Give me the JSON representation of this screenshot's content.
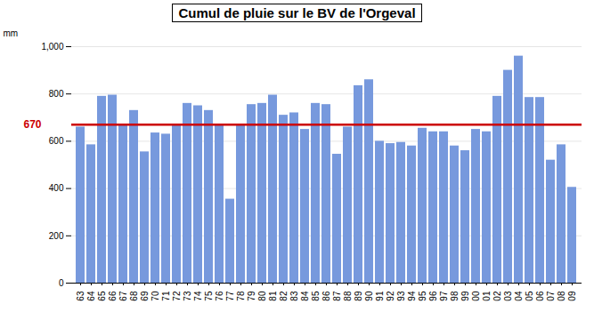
{
  "chart_data": {
    "type": "bar",
    "title": "Cumul de pluie sur le BV de l'Orgeval",
    "ylabel": "mm",
    "categories": [
      "63",
      "64",
      "65",
      "66",
      "67",
      "68",
      "69",
      "70",
      "71",
      "72",
      "73",
      "74",
      "75",
      "76",
      "77",
      "78",
      "79",
      "80",
      "81",
      "82",
      "83",
      "84",
      "85",
      "86",
      "87",
      "88",
      "89",
      "90",
      "91",
      "92",
      "93",
      "94",
      "95",
      "96",
      "97",
      "98",
      "99",
      "00",
      "01",
      "02",
      "03",
      "04",
      "05",
      "06",
      "07",
      "08",
      "09"
    ],
    "values": [
      660,
      585,
      790,
      795,
      670,
      730,
      555,
      635,
      630,
      670,
      760,
      750,
      730,
      670,
      355,
      670,
      755,
      760,
      795,
      710,
      720,
      650,
      760,
      755,
      545,
      660,
      835,
      860,
      600,
      590,
      595,
      580,
      655,
      640,
      640,
      580,
      560,
      650,
      640,
      790,
      900,
      960,
      785,
      785,
      520,
      585,
      405
    ],
    "color": "#7799dd",
    "mean_line": {
      "value": 670,
      "color": "#cc0000"
    },
    "ylim": [
      0,
      1000
    ],
    "yticks": [
      0,
      200,
      400,
      600,
      800,
      1000
    ],
    "grid": true
  }
}
